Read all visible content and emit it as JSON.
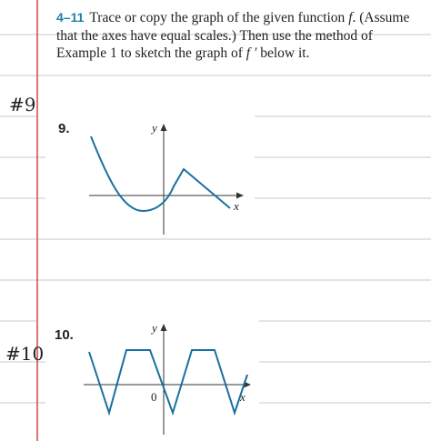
{
  "problem": {
    "number": "4–11",
    "lines": [
      [
        "Trace or copy the graph of the given function ",
        "f",
        ". (Assume"
      ],
      [
        "that the axes have equal scales.) Then use the method of"
      ],
      [
        "Example 1 to sketch the graph of ",
        "f ′",
        " below it."
      ]
    ]
  },
  "notes": [
    "#9",
    "#10"
  ],
  "graphs": [
    {
      "label": "9.",
      "y_axis": "y",
      "x_axis": "x"
    },
    {
      "label": "10.",
      "y_axis": "y",
      "origin": "0",
      "x_axis": "x"
    }
  ]
}
